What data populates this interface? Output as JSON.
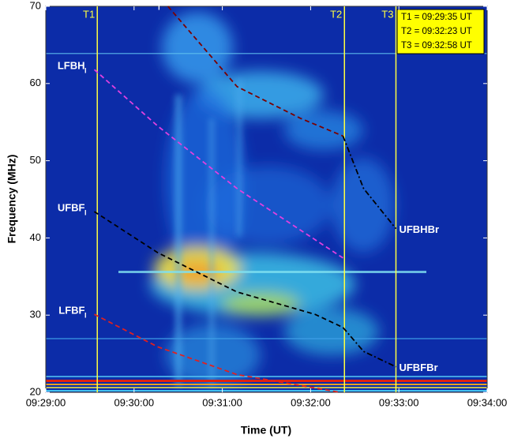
{
  "chart_data": {
    "type": "line",
    "xlabel": "Time (UT)",
    "ylabel": "Frequency (MHz)",
    "xlim": [
      "09:29:00",
      "09:34:00"
    ],
    "xticks": [
      "09:29:00",
      "09:30:00",
      "09:31:00",
      "09:32:00",
      "09:33:00",
      "09:34:00"
    ],
    "ylim": [
      20,
      70
    ],
    "yticks": [
      20,
      30,
      40,
      50,
      60,
      70
    ],
    "markers": [
      {
        "label": "T1",
        "x": "09:29:35",
        "color": "#ffff40"
      },
      {
        "label": "T2",
        "x": "09:32:23",
        "color": "#ffff40"
      },
      {
        "label": "T3",
        "x": "09:32:58",
        "color": "#ffff40"
      }
    ],
    "info_box": [
      "T1 = 09:29:35 UT",
      "T2 = 09:32:23 UT",
      "T3 = 09:32:58 UT"
    ],
    "series": [
      {
        "name": "UFBH",
        "subscript": "I",
        "color": "#7a0000",
        "dash": "dashed",
        "x": [
          "09:30:23",
          "09:31:10",
          "09:31:53",
          "09:32:22"
        ],
        "values": [
          70,
          59.6,
          55.5,
          53.2
        ]
      },
      {
        "name": "UFBHBr",
        "color": "#000000",
        "dash": "dashdot",
        "x": [
          "09:32:22",
          "09:32:36",
          "09:32:58"
        ],
        "values": [
          53.2,
          46.4,
          41.2
        ]
      },
      {
        "name": "LFBH",
        "subscript": "I",
        "color": "#e040e0",
        "dash": "dashed",
        "x": [
          "09:29:33",
          "09:30:16",
          "09:31:10",
          "09:32:22"
        ],
        "values": [
          61.8,
          54.5,
          46.4,
          37.4
        ]
      },
      {
        "name": "UFBF",
        "subscript": "I",
        "color": "#000000",
        "dash": "dashed",
        "x": [
          "09:29:33",
          "09:30:16",
          "09:31:10",
          "09:32:03",
          "09:32:22"
        ],
        "values": [
          43.4,
          38.1,
          33,
          30.1,
          28.4
        ]
      },
      {
        "name": "UFBFBr",
        "color": "#000000",
        "dash": "dashdot",
        "x": [
          "09:32:22",
          "09:32:36",
          "09:32:58"
        ],
        "values": [
          28.4,
          25.3,
          23.3
        ]
      },
      {
        "name": "LFBF",
        "subscript": "I",
        "color": "#e02020",
        "dash": "dashed",
        "x": [
          "09:29:33",
          "09:30:16",
          "09:31:10",
          "09:32:20"
        ],
        "values": [
          30.1,
          25.9,
          22.3,
          20
        ]
      }
    ]
  }
}
